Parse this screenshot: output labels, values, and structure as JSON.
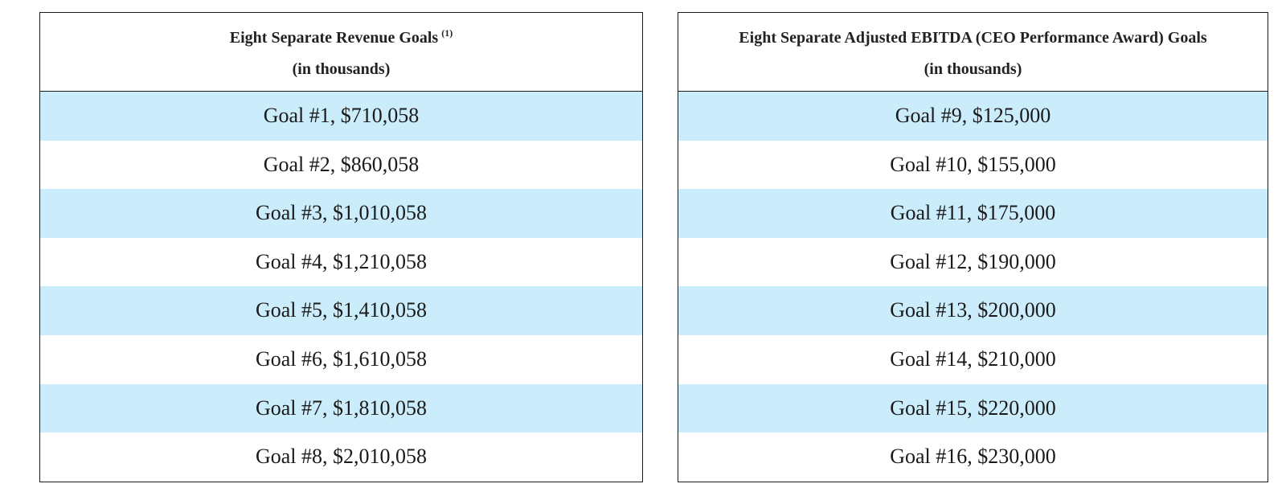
{
  "left_table": {
    "header_title": "Eight Separate Revenue Goals",
    "header_footnote": "(1)",
    "header_unit": "(in thousands)",
    "goals": [
      "Goal #1, $710,058",
      "Goal #2, $860,058",
      "Goal #3, $1,010,058",
      "Goal #4, $1,210,058",
      "Goal #5, $1,410,058",
      "Goal #6, $1,610,058",
      "Goal #7, $1,810,058",
      "Goal #8, $2,010,058"
    ]
  },
  "right_table": {
    "header_title": "Eight Separate Adjusted EBITDA (CEO Performance Award) Goals",
    "header_unit": "(in thousands)",
    "goals": [
      "Goal #9, $125,000",
      "Goal #10, $155,000",
      "Goal #11, $175,000",
      "Goal #12, $190,000",
      "Goal #13, $200,000",
      "Goal #14, $210,000",
      "Goal #15, $220,000",
      "Goal #16, $230,000"
    ]
  },
  "colors": {
    "row_highlight": "#cbecfb",
    "border": "#1a1a1a"
  }
}
